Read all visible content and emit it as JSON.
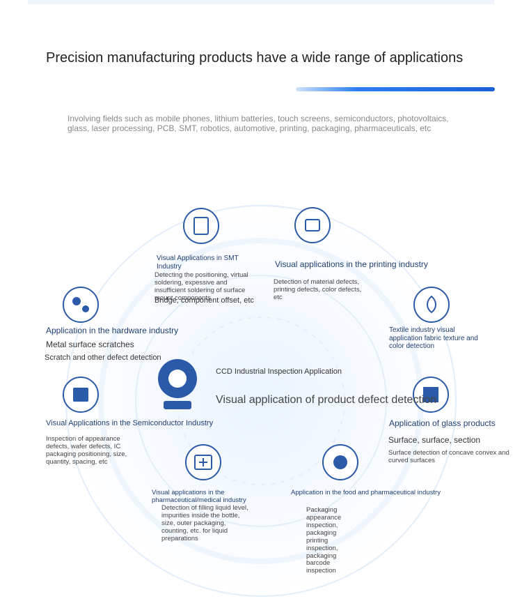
{
  "header": {
    "title": "Precision manufacturing products have a wide range of applications",
    "subtitle": "Involving fields such as mobile phones, lithium batteries, touch screens, semiconductors, photovoltaics, glass, laser processing, PCB, SMT, robotics, automotive, printing, packaging, pharmaceuticals, etc"
  },
  "center": {
    "label": "CCD Industrial Inspection Application",
    "title": "Visual application of product defect detection"
  },
  "nodes": [
    {
      "label": "Visual Applications in SMT Industry",
      "details": [
        "Detecting the positioning, virtual soldering, expessive and insufficient soldering of surface mount components",
        "Bridge, component offset, etc"
      ]
    },
    {
      "label": "Visual applications in the printing industry",
      "details": [
        "Detection of material defects, printing defects, color defects, etc"
      ]
    },
    {
      "label": "Application in the hardware industry",
      "details": [
        "Metal surface scratches",
        "Scratch and other defect detection"
      ]
    },
    {
      "label": "Textile industry visual application fabric texture and color detection",
      "details": []
    },
    {
      "label": "Visual Applications in the Semiconductor Industry",
      "details": [
        "Inspection of appearance defects, wafer defects, IC packaging positioning, size, quantity, spacing, etc"
      ]
    },
    {
      "label": "Application of glass products",
      "details": [
        "Surface, surface, section",
        "Surface detection of concave convex and curved surfaces"
      ]
    },
    {
      "label": "Visual applications in the pharmaceutical/medical industry",
      "details": [
        "Detection of filling liquid level, impurities inside the bottle, size, outer packaging, counting, etc. for liquid preparations"
      ]
    },
    {
      "label": "Application in the food and pharmaceutical industry",
      "details": [
        "Packaging appearance inspection, packaging printing inspection, packaging barcode inspection"
      ]
    }
  ]
}
